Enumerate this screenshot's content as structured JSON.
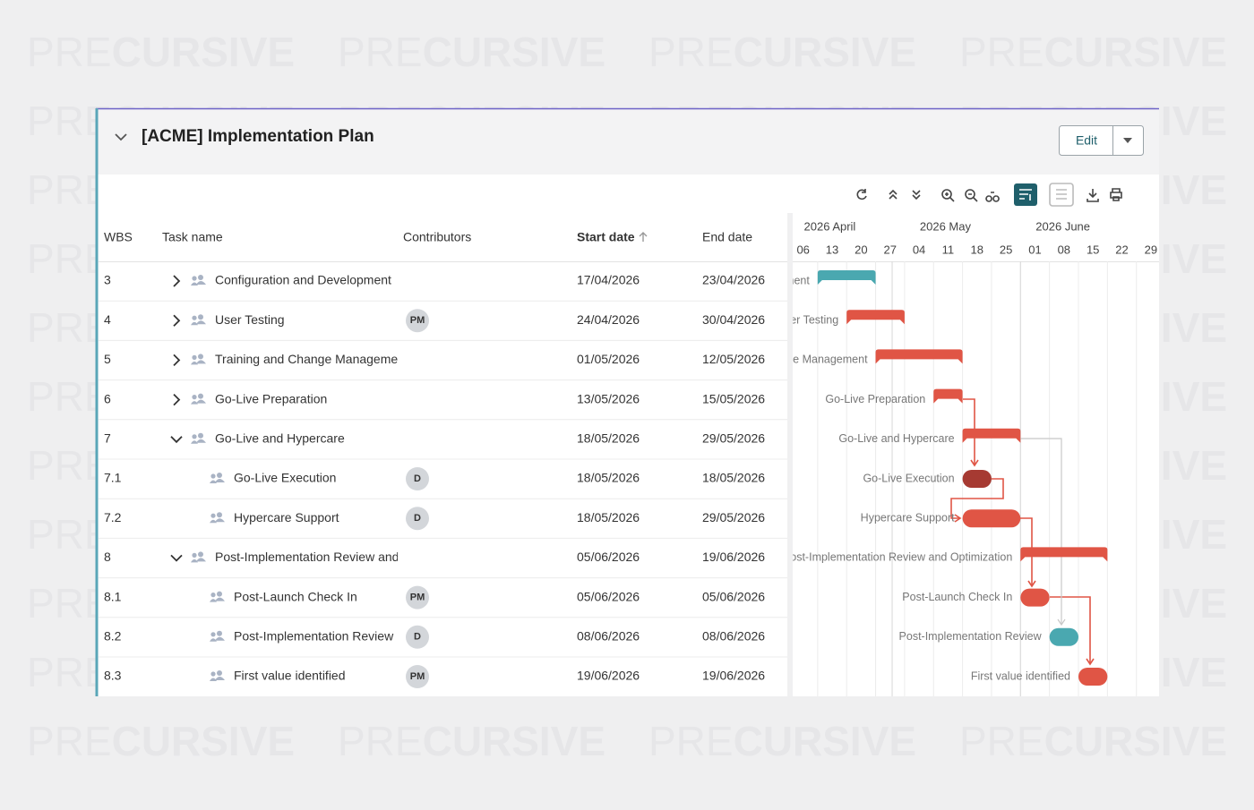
{
  "watermark": [
    "PRE",
    "CURSIVE"
  ],
  "header": {
    "title": "[ACME] Implementation Plan",
    "edit_button": "Edit"
  },
  "table": {
    "columns": [
      "WBS",
      "Task name",
      "Contributors",
      "Start date",
      "End date"
    ],
    "rows": [
      {
        "wbs": "3",
        "name": "Configuration and Development",
        "contributor": null,
        "start": "17/04/2026",
        "end": "23/04/2026",
        "expanded": false,
        "bar": "summary",
        "color": "#4aa8b0"
      },
      {
        "wbs": "4",
        "name": "User Testing",
        "contributor": "PM",
        "start": "24/04/2026",
        "end": "30/04/2026",
        "expanded": false,
        "bar": "summary",
        "color": "#e05545"
      },
      {
        "wbs": "5",
        "name": "Training and Change Management",
        "contributor": null,
        "start": "01/05/2026",
        "end": "12/05/2026",
        "expanded": false,
        "bar": "summary",
        "color": "#e05545"
      },
      {
        "wbs": "6",
        "name": "Go-Live Preparation",
        "contributor": null,
        "start": "13/05/2026",
        "end": "15/05/2026",
        "expanded": false,
        "bar": "summary",
        "color": "#e05545"
      },
      {
        "wbs": "7",
        "name": "Go-Live and Hypercare",
        "contributor": null,
        "start": "18/05/2026",
        "end": "29/05/2026",
        "expanded": true,
        "bar": "summary",
        "color": "#e05545"
      },
      {
        "wbs": "7.1",
        "name": "Go-Live Execution",
        "contributor": "D",
        "start": "18/05/2026",
        "end": "18/05/2026",
        "expanded": null,
        "bar": "task",
        "color": "#a63a32"
      },
      {
        "wbs": "7.2",
        "name": "Hypercare Support",
        "contributor": "D",
        "start": "18/05/2026",
        "end": "29/05/2026",
        "expanded": null,
        "bar": "task",
        "color": "#e05545"
      },
      {
        "wbs": "8",
        "name": "Post-Implementation Review and Optimization",
        "contributor": null,
        "start": "05/06/2026",
        "end": "19/06/2026",
        "expanded": true,
        "bar": "summary",
        "color": "#e05545"
      },
      {
        "wbs": "8.1",
        "name": "Post-Launch Check In",
        "contributor": "PM",
        "start": "05/06/2026",
        "end": "05/06/2026",
        "expanded": null,
        "bar": "task",
        "color": "#e05545"
      },
      {
        "wbs": "8.2",
        "name": "Post-Implementation Review",
        "contributor": "D",
        "start": "08/06/2026",
        "end": "08/06/2026",
        "expanded": null,
        "bar": "task",
        "color": "#4aa8b0"
      },
      {
        "wbs": "8.3",
        "name": "First value identified",
        "contributor": "PM",
        "start": "19/06/2026",
        "end": "19/06/2026",
        "expanded": null,
        "bar": "task",
        "color": "#e05545"
      }
    ]
  },
  "timeline": {
    "months": [
      {
        "label": "2026 April",
        "week": 0
      },
      {
        "label": "2026 May",
        "week": 4
      },
      {
        "label": "2026 June",
        "week": 8
      }
    ],
    "weeks": [
      "06",
      "13",
      "20",
      "27",
      "04",
      "11",
      "18",
      "25",
      "01",
      "08",
      "15",
      "22",
      "29"
    ]
  }
}
